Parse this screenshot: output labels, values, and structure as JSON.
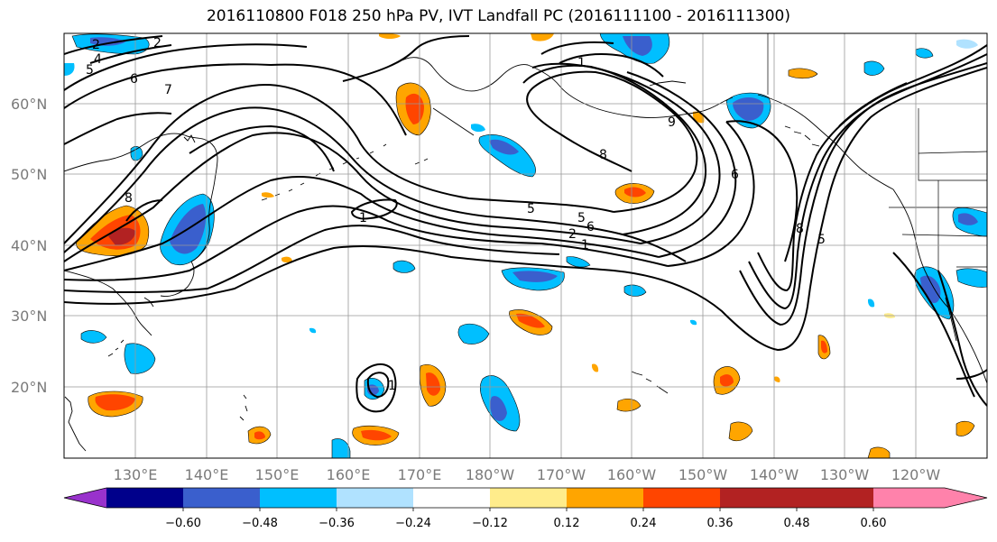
{
  "title": "2016110800 F018 250 hPa PV, IVT Landfall PC (2016111100 - 2016111300)",
  "lat_labels": [
    "60°N",
    "50°N",
    "40°N",
    "30°N",
    "20°N"
  ],
  "lon_labels": [
    "130°E",
    "140°E",
    "150°E",
    "160°E",
    "170°E",
    "180°W",
    "170°W",
    "160°W",
    "150°W",
    "140°W",
    "130°W",
    "120°W"
  ],
  "colorbar": {
    "colors": [
      "#9932cc",
      "#00008b",
      "#3a5fcd",
      "#00bfff",
      "#b0e2ff",
      "#ffffff",
      "#ffec8b",
      "#ffa500",
      "#ff4500",
      "#b22222",
      "#ff82ab"
    ],
    "tick_labels": [
      "−0.60",
      "−0.48",
      "−0.36",
      "−0.24",
      "−0.12",
      "0.12",
      "0.24",
      "0.36",
      "0.48",
      "0.60"
    ]
  },
  "contour_labels": [
    "2",
    "2",
    "4",
    "5",
    "6",
    "7",
    "8",
    "5",
    "2",
    "1",
    "1",
    "5",
    "6",
    "8",
    "9",
    "6",
    "8",
    "5",
    "1",
    "1"
  ]
}
